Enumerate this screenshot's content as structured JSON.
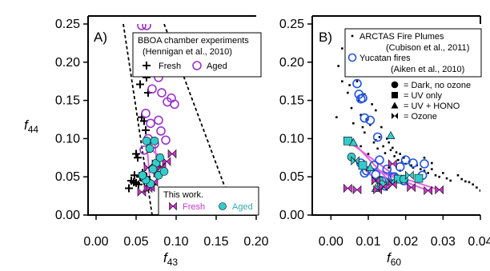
{
  "chart_data": [
    {
      "type": "scatter",
      "panel_label": "A)",
      "xlabel": "f",
      "xlabel_sub": "43",
      "ylabel": "f",
      "ylabel_sub": "44",
      "xlim": [
        -0.01,
        0.2
      ],
      "ylim": [
        0.0,
        0.25
      ],
      "xticks": [
        "0.00",
        "0.05",
        "0.10",
        "0.15",
        "0.20"
      ],
      "yticks": [
        "0.00",
        "0.05",
        "0.10",
        "0.15",
        "0.20",
        "0.25"
      ],
      "legend_top": {
        "title": "BBOA chamber experiments",
        "citation": "(Hennigan et al., 2010)",
        "entries": [
          {
            "marker": "plus",
            "label": "Fresh",
            "color": "#000000"
          },
          {
            "marker": "circle-open",
            "label": "Aged",
            "color": "#9933cc"
          }
        ]
      },
      "legend_bottom": {
        "title": "This work.",
        "entries": [
          {
            "marker": "bowtie",
            "label": "Fresh",
            "color": "#cc33cc"
          },
          {
            "marker": "circle",
            "label": "Aged",
            "color": "#33cccc"
          }
        ]
      },
      "triangle_lines": [
        {
          "from": [
            0.034,
            0.25
          ],
          "to": [
            0.07,
            0.0
          ]
        },
        {
          "from": [
            0.085,
            0.25
          ],
          "to": [
            0.165,
            0.025
          ]
        }
      ],
      "series": [
        {
          "name": "Fresh",
          "marker": "plus",
          "color": "#000000",
          "points": [
            [
              0.055,
              0.171
            ],
            [
              0.063,
              0.18
            ],
            [
              0.065,
              0.16
            ],
            [
              0.057,
              0.128
            ],
            [
              0.06,
              0.123
            ],
            [
              0.062,
              0.111
            ],
            [
              0.05,
              0.08
            ],
            [
              0.052,
              0.075
            ],
            [
              0.044,
              0.045
            ],
            [
              0.047,
              0.043
            ],
            [
              0.05,
              0.042
            ],
            [
              0.055,
              0.05
            ],
            [
              0.058,
              0.055
            ],
            [
              0.041,
              0.035
            ],
            [
              0.053,
              0.04
            ],
            [
              0.06,
              0.045
            ],
            [
              0.066,
              0.038
            ],
            [
              0.048,
              0.052
            ],
            [
              0.063,
              0.05
            ],
            [
              0.07,
              0.04
            ]
          ]
        },
        {
          "name": "Aged",
          "marker": "circle-open",
          "color": "#9933cc",
          "points": [
            [
              0.057,
              0.248
            ],
            [
              0.063,
              0.248
            ],
            [
              0.07,
              0.165
            ],
            [
              0.088,
              0.196
            ],
            [
              0.078,
              0.18
            ],
            [
              0.082,
              0.16
            ],
            [
              0.089,
              0.148
            ],
            [
              0.094,
              0.153
            ],
            [
              0.098,
              0.145
            ],
            [
              0.062,
              0.133
            ],
            [
              0.078,
              0.124
            ],
            [
              0.068,
              0.12
            ],
            [
              0.081,
              0.11
            ],
            [
              0.065,
              0.1
            ],
            [
              0.073,
              0.093
            ],
            [
              0.06,
              0.085
            ],
            [
              0.087,
              0.098
            ]
          ]
        },
        {
          "name": "Fresh (this work)",
          "marker": "bowtie",
          "color": "#cc33cc",
          "points": [
            [
              0.057,
              0.03
            ],
            [
              0.065,
              0.035
            ],
            [
              0.068,
              0.036
            ],
            [
              0.072,
              0.043
            ],
            [
              0.077,
              0.055
            ],
            [
              0.082,
              0.063
            ],
            [
              0.088,
              0.07
            ],
            [
              0.095,
              0.08
            ],
            [
              0.075,
              0.067
            ],
            [
              0.065,
              0.062
            ]
          ]
        },
        {
          "name": "Aged (this work)",
          "marker": "circle",
          "color": "#33cccc",
          "points": [
            [
              0.063,
              0.097
            ],
            [
              0.073,
              0.097
            ],
            [
              0.067,
              0.087
            ],
            [
              0.075,
              0.068
            ],
            [
              0.071,
              0.06
            ],
            [
              0.078,
              0.052
            ],
            [
              0.068,
              0.041
            ],
            [
              0.062,
              0.046
            ],
            [
              0.08,
              0.075
            ],
            [
              0.085,
              0.057
            ],
            [
              0.058,
              0.052
            ]
          ]
        }
      ]
    },
    {
      "type": "scatter",
      "panel_label": "B)",
      "xlabel": "f",
      "xlabel_sub": "60",
      "xlim": [
        -0.005,
        0.04
      ],
      "ylim": [
        0.0,
        0.25
      ],
      "xticks": [
        "0.00",
        "0.01",
        "0.02",
        "0.03",
        "0.04"
      ],
      "yticks": [
        "0.00",
        "0.05",
        "0.10",
        "0.15",
        "0.20",
        "0.25"
      ],
      "legend_top": {
        "entries": [
          {
            "marker": "dot",
            "label": "ARCTAS Fire Plumes",
            "citation": "(Cubison et al., 2011)",
            "color": "#000000"
          },
          {
            "marker": "circle-open",
            "label": "Yucatan fires",
            "citation": "(Aiken et al., 2010)",
            "color": "#2255dd"
          }
        ]
      },
      "legend_conditions": [
        {
          "marker": "circle",
          "label": "= Dark, no ozone"
        },
        {
          "marker": "square",
          "label": "= UV only"
        },
        {
          "marker": "triangle",
          "label": "= UV + HONO"
        },
        {
          "marker": "bowtie",
          "label": "= Ozone"
        }
      ],
      "series": [
        {
          "name": "ARCTAS Fire Plumes",
          "marker": "dot",
          "color": "#000000",
          "points": [
            [
              0.0015,
              0.128
            ],
            [
              0.002,
              0.195
            ],
            [
              0.003,
              0.218
            ],
            [
              0.004,
              0.19
            ],
            [
              0.0045,
              0.16
            ],
            [
              0.0046,
              0.2
            ],
            [
              0.005,
              0.17
            ],
            [
              0.0055,
              0.14
            ],
            [
              0.006,
              0.12
            ],
            [
              0.0065,
              0.185
            ],
            [
              0.007,
              0.175
            ],
            [
              0.0075,
              0.15
            ],
            [
              0.008,
              0.131
            ],
            [
              0.0085,
              0.115
            ],
            [
              0.009,
              0.108
            ],
            [
              0.0095,
              0.125
            ],
            [
              0.0105,
              0.118
            ],
            [
              0.011,
              0.145
            ],
            [
              0.0115,
              0.095
            ],
            [
              0.012,
              0.098
            ],
            [
              0.0125,
              0.087
            ],
            [
              0.013,
              0.102
            ],
            [
              0.0135,
              0.115
            ],
            [
              0.014,
              0.09
            ],
            [
              0.0145,
              0.081
            ],
            [
              0.015,
              0.1
            ],
            [
              0.0155,
              0.095
            ],
            [
              0.016,
              0.085
            ],
            [
              0.0165,
              0.088
            ],
            [
              0.017,
              0.077
            ],
            [
              0.0175,
              0.082
            ],
            [
              0.018,
              0.072
            ],
            [
              0.0185,
              0.08
            ],
            [
              0.019,
              0.069
            ],
            [
              0.0195,
              0.075
            ],
            [
              0.02,
              0.067
            ],
            [
              0.021,
              0.07
            ],
            [
              0.022,
              0.062
            ],
            [
              0.023,
              0.065
            ],
            [
              0.024,
              0.06
            ],
            [
              0.025,
              0.058
            ],
            [
              0.026,
              0.055
            ],
            [
              0.027,
              0.06
            ],
            [
              0.028,
              0.052
            ],
            [
              0.029,
              0.05
            ],
            [
              0.03,
              0.055
            ],
            [
              0.031,
              0.048
            ],
            [
              0.032,
              0.045
            ],
            [
              0.034,
              0.052
            ],
            [
              0.035,
              0.047
            ],
            [
              0.036,
              0.044
            ],
            [
              0.037,
              0.043
            ],
            [
              0.038,
              0.04
            ],
            [
              0.039,
              0.036
            ],
            [
              0.04,
              0.032
            ],
            [
              0.041,
              0.028
            ],
            [
              0.006,
              0.07
            ],
            [
              0.008,
              0.09
            ],
            [
              0.01,
              0.08
            ],
            [
              0.0155,
              0.062
            ],
            [
              0.0185,
              0.058
            ],
            [
              0.0215,
              0.065
            ],
            [
              0.025,
              0.075
            ],
            [
              0.027,
              0.068
            ],
            [
              0.012,
              0.137
            ],
            [
              0.009,
              0.158
            ],
            [
              0.005,
              0.222
            ],
            [
              0.006,
              0.208
            ],
            [
              0.003,
              0.175
            ]
          ]
        },
        {
          "name": "Yucatan fires",
          "marker": "circle-open",
          "color": "#2255dd",
          "points": [
            [
              0.007,
              0.172
            ],
            [
              0.0075,
              0.158
            ],
            [
              0.008,
              0.152
            ],
            [
              0.0085,
              0.153
            ],
            [
              0.009,
              0.127
            ],
            [
              0.0105,
              0.124
            ],
            [
              0.0125,
              0.102
            ],
            [
              0.008,
              0.068
            ],
            [
              0.0095,
              0.058
            ],
            [
              0.0115,
              0.065
            ],
            [
              0.013,
              0.072
            ],
            [
              0.015,
              0.06
            ],
            [
              0.0165,
              0.05
            ],
            [
              0.0185,
              0.063
            ],
            [
              0.02,
              0.072
            ],
            [
              0.022,
              0.068
            ],
            [
              0.0245,
              0.052
            ],
            [
              0.025,
              0.067
            ],
            [
              0.009,
              0.055
            ],
            [
              0.012,
              0.053
            ],
            [
              0.0135,
              0.045
            ],
            [
              0.0145,
              0.038
            ],
            [
              0.017,
              0.05
            ],
            [
              0.0195,
              0.045
            ]
          ]
        },
        {
          "name": "This work: Aged",
          "marker": "mixed",
          "color": "#33cccc",
          "points": [
            [
              0.0045,
              0.097
            ],
            [
              0.006,
              0.095
            ],
            [
              0.0055,
              0.076
            ],
            [
              0.0065,
              0.071
            ],
            [
              0.0085,
              0.065
            ],
            [
              0.0105,
              0.062
            ],
            [
              0.013,
              0.045
            ],
            [
              0.016,
              0.043
            ],
            [
              0.018,
              0.047
            ],
            [
              0.016,
              0.104
            ],
            [
              0.0195,
              0.047
            ],
            [
              0.021,
              0.052
            ],
            [
              0.0235,
              0.048
            ],
            [
              0.012,
              0.035
            ],
            [
              0.0135,
              0.04
            ]
          ]
        },
        {
          "name": "This work: Fresh",
          "marker": "bowtie",
          "color": "#cc33cc",
          "points": [
            [
              0.0045,
              0.035
            ],
            [
              0.007,
              0.033
            ],
            [
              0.0125,
              0.033
            ],
            [
              0.014,
              0.037
            ],
            [
              0.0165,
              0.04
            ],
            [
              0.0215,
              0.036
            ],
            [
              0.026,
              0.032
            ],
            [
              0.029,
              0.033
            ],
            [
              0.0165,
              0.067
            ],
            [
              0.012,
              0.045
            ]
          ]
        }
      ]
    }
  ]
}
